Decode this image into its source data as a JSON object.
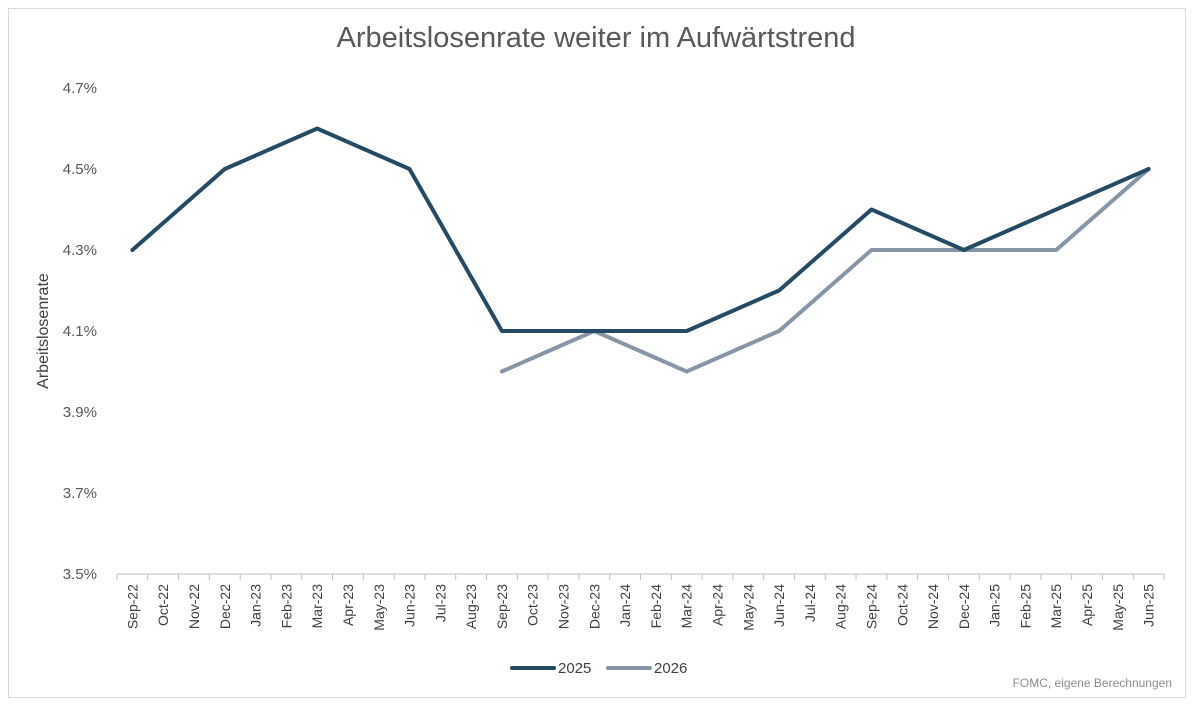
{
  "chart_data": {
    "type": "line",
    "title": "Arbeitslosenrate weiter im Aufwärtstrend",
    "ylabel": "Arbeitslosenrate",
    "xlabel": "",
    "categories": [
      "Sep-22",
      "Oct-22",
      "Nov-22",
      "Dec-22",
      "Jan-23",
      "Feb-23",
      "Mar-23",
      "Apr-23",
      "May-23",
      "Jun-23",
      "Jul-23",
      "Aug-23",
      "Sep-23",
      "Oct-23",
      "Nov-23",
      "Dec-23",
      "Jan-24",
      "Feb-24",
      "Mar-24",
      "Apr-24",
      "May-24",
      "Jun-24",
      "Jul-24",
      "Aug-24",
      "Sep-24",
      "Oct-24",
      "Nov-24",
      "Dec-24",
      "Jan-25",
      "Feb-25",
      "Mar-25",
      "Apr-25",
      "May-25",
      "Jun-25"
    ],
    "ylim": [
      3.5,
      4.7
    ],
    "yticks": [
      3.5,
      3.7,
      3.9,
      4.1,
      4.3,
      4.5,
      4.7
    ],
    "ytick_labels": [
      "3.5%",
      "3.7%",
      "3.9%",
      "4.1%",
      "4.3%",
      "4.5%",
      "4.7%"
    ],
    "grid": false,
    "legend_position": "bottom",
    "series": [
      {
        "name": "2025",
        "color": "#244a64",
        "points": [
          [
            0,
            4.3
          ],
          [
            3,
            4.5
          ],
          [
            6,
            4.6
          ],
          [
            9,
            4.5
          ],
          [
            12,
            4.1
          ],
          [
            15,
            4.1
          ],
          [
            18,
            4.1
          ],
          [
            21,
            4.2
          ],
          [
            24,
            4.4
          ],
          [
            27,
            4.3
          ],
          [
            33,
            4.5
          ]
        ]
      },
      {
        "name": "2026",
        "color": "#8796a7",
        "points": [
          [
            12,
            4.0
          ],
          [
            15,
            4.1
          ],
          [
            18,
            4.0
          ],
          [
            21,
            4.1
          ],
          [
            24,
            4.3
          ],
          [
            27,
            4.3
          ],
          [
            30,
            4.3
          ],
          [
            33,
            4.5
          ]
        ]
      }
    ]
  },
  "source": "FOMC, eigene Berechnungen"
}
